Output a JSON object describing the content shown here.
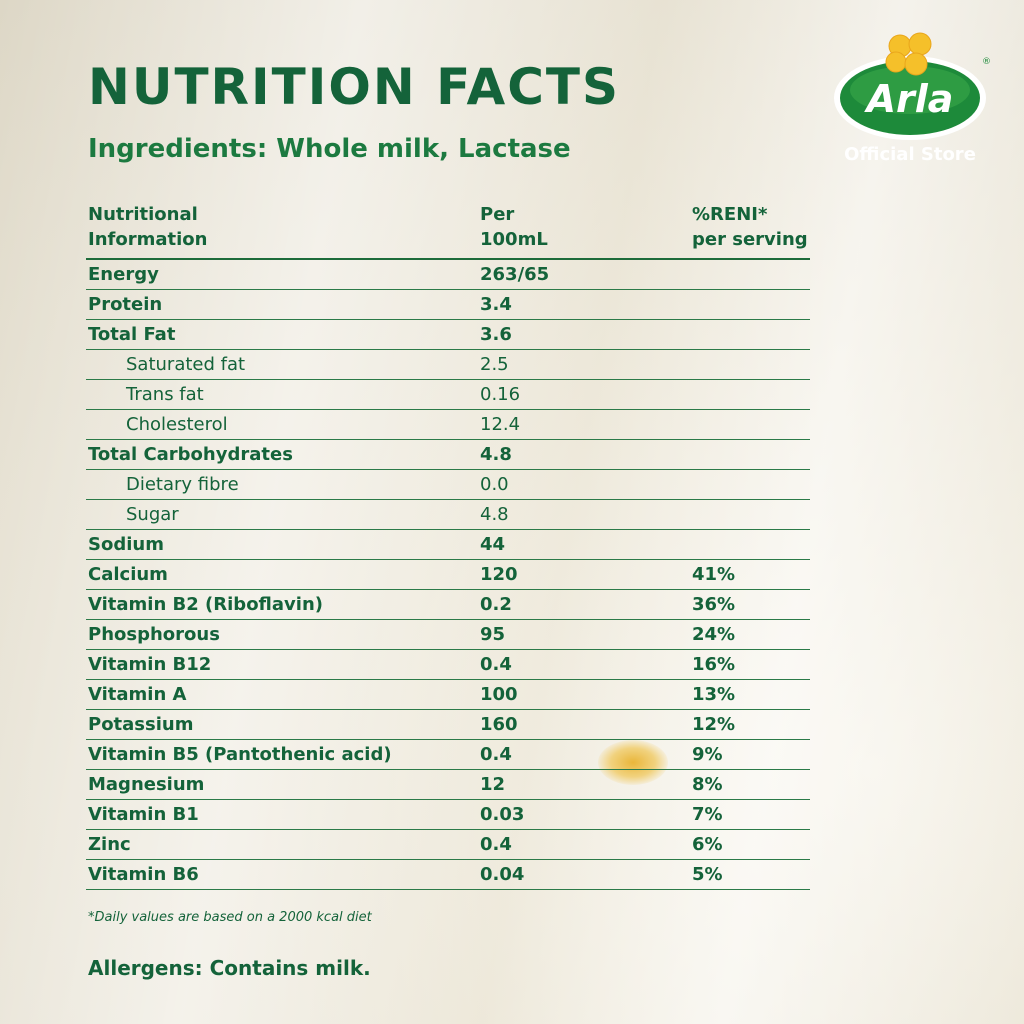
{
  "title": "NUTRITION FACTS",
  "ingredients": "Ingredients: Whole milk, Lactase",
  "brand": {
    "logo_text": "Arla",
    "store": "Official Store",
    "green": "#1d8a3a",
    "yellow": "#f5c02a"
  },
  "colors": {
    "text": "#14633a"
  },
  "table": {
    "headers": [
      "Nutritional\nInformation",
      "Per\n100mL",
      "%RENI*\nper serving"
    ],
    "rows": [
      {
        "name": "Energy",
        "value": "263/65",
        "reni": "",
        "sub": false
      },
      {
        "name": "Protein",
        "value": "3.4",
        "reni": "",
        "sub": false
      },
      {
        "name": "Total Fat",
        "value": "3.6",
        "reni": "",
        "sub": false
      },
      {
        "name": "Saturated fat",
        "value": "2.5",
        "reni": "",
        "sub": true
      },
      {
        "name": "Trans fat",
        "value": "0.16",
        "reni": "",
        "sub": true
      },
      {
        "name": "Cholesterol",
        "value": "12.4",
        "reni": "",
        "sub": true
      },
      {
        "name": "Total Carbohydrates",
        "value": "4.8",
        "reni": "",
        "sub": false
      },
      {
        "name": "Dietary fibre",
        "value": "0.0",
        "reni": "",
        "sub": true
      },
      {
        "name": "Sugar",
        "value": "4.8",
        "reni": "",
        "sub": true
      },
      {
        "name": "Sodium",
        "value": "44",
        "reni": "",
        "sub": false
      },
      {
        "name": "Calcium",
        "value": "120",
        "reni": "41%",
        "sub": false
      },
      {
        "name": "Vitamin B2 (Riboflavin)",
        "value": "0.2",
        "reni": "36%",
        "sub": false
      },
      {
        "name": "Phosphorous",
        "value": "95",
        "reni": "24%",
        "sub": false
      },
      {
        "name": "Vitamin B12",
        "value": "0.4",
        "reni": "16%",
        "sub": false
      },
      {
        "name": "Vitamin A",
        "value": "100",
        "reni": "13%",
        "sub": false
      },
      {
        "name": "Potassium",
        "value": "160",
        "reni": "12%",
        "sub": false
      },
      {
        "name": "Vitamin B5 (Pantothenic acid)",
        "value": "0.4",
        "reni": "9%",
        "sub": false
      },
      {
        "name": "Magnesium",
        "value": "12",
        "reni": "8%",
        "sub": false
      },
      {
        "name": "Vitamin B1",
        "value": "0.03",
        "reni": "7%",
        "sub": false
      },
      {
        "name": "Zinc",
        "value": "0.4",
        "reni": "6%",
        "sub": false
      },
      {
        "name": "Vitamin B6",
        "value": "0.04",
        "reni": "5%",
        "sub": false
      }
    ]
  },
  "footnote": "*Daily values are based on a 2000 kcal diet",
  "allergens": "Allergens: Contains milk."
}
